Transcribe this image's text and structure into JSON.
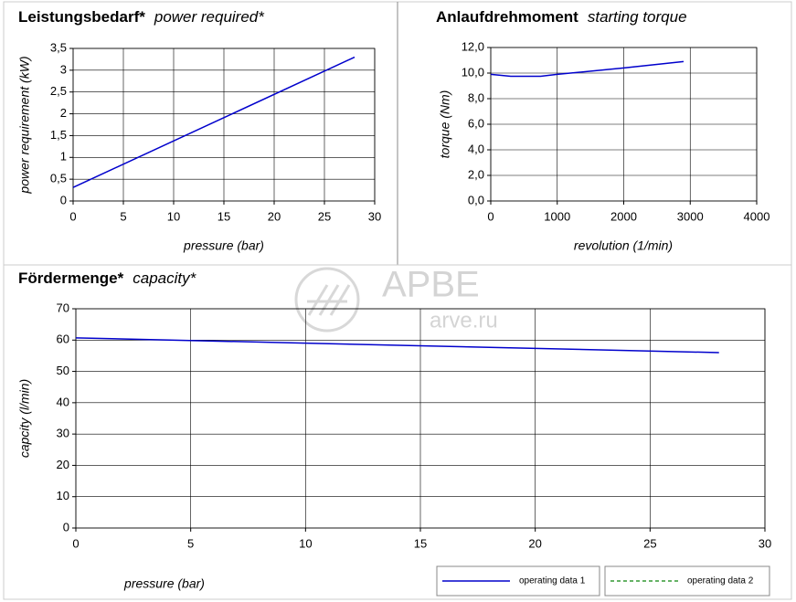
{
  "chart_data": [
    {
      "type": "line",
      "title": "Leistungsbedarf*",
      "subtitle": "power required*",
      "xlabel": "pressure (bar)",
      "ylabel": "power requirement (kW)",
      "x": [
        0,
        28
      ],
      "series": [
        {
          "color": "#0000cc",
          "values": [
            0.31,
            3.3
          ]
        }
      ],
      "xlim": [
        0,
        30
      ],
      "xticks": [
        0,
        5,
        10,
        15,
        20,
        25,
        30
      ],
      "ylim": [
        0,
        3.5
      ],
      "yticks": [
        0,
        {
          "value": 0.5,
          "label": "0,5"
        },
        1,
        {
          "value": 1.5,
          "label": "1,5"
        },
        2,
        {
          "value": 2.5,
          "label": "2,5"
        },
        3,
        {
          "value": 3.5,
          "label": "3,5"
        }
      ],
      "grid": true
    },
    {
      "type": "line",
      "title": "Anlaufdrehmoment",
      "subtitle": "starting torque",
      "xlabel": "revolution (1/min)",
      "ylabel": "torque (Nm)",
      "x": [
        0,
        300,
        750,
        1000,
        2000,
        2900
      ],
      "series": [
        {
          "color": "#0000cc",
          "values": [
            9.9,
            9.75,
            9.75,
            9.9,
            10.4,
            10.9
          ]
        }
      ],
      "xlim": [
        0,
        4000
      ],
      "xticks": [
        0,
        1000,
        2000,
        3000,
        4000
      ],
      "ylim": [
        0,
        12
      ],
      "yticks": [
        {
          "value": 0,
          "label": "0,0"
        },
        {
          "value": 2,
          "label": "2,0"
        },
        {
          "value": 4,
          "label": "4,0"
        },
        {
          "value": 6,
          "label": "6,0"
        },
        {
          "value": 8,
          "label": "8,0"
        },
        {
          "value": 10,
          "label": "10,0"
        },
        {
          "value": 12,
          "label": "12,0"
        }
      ],
      "grid": true
    },
    {
      "type": "line",
      "title": "Fördermenge*",
      "subtitle": "capacity*",
      "xlabel": "pressure (bar)",
      "ylabel": "capcity (l/min)",
      "x": [
        0,
        28
      ],
      "series": [
        {
          "name": "operating data 1",
          "color": "#0000cc",
          "values": [
            60.7,
            56
          ]
        },
        {
          "name": "operating data 2",
          "color": "#339933",
          "dashed": true,
          "values": [
            null,
            null
          ]
        }
      ],
      "xlim": [
        0,
        30
      ],
      "xticks": [
        0,
        5,
        10,
        15,
        20,
        25,
        30
      ],
      "ylim": [
        0,
        70
      ],
      "yticks": [
        0,
        10,
        20,
        30,
        40,
        50,
        60,
        70
      ],
      "grid": true
    }
  ],
  "watermark": [
    "APBE",
    "arve.ru"
  ]
}
